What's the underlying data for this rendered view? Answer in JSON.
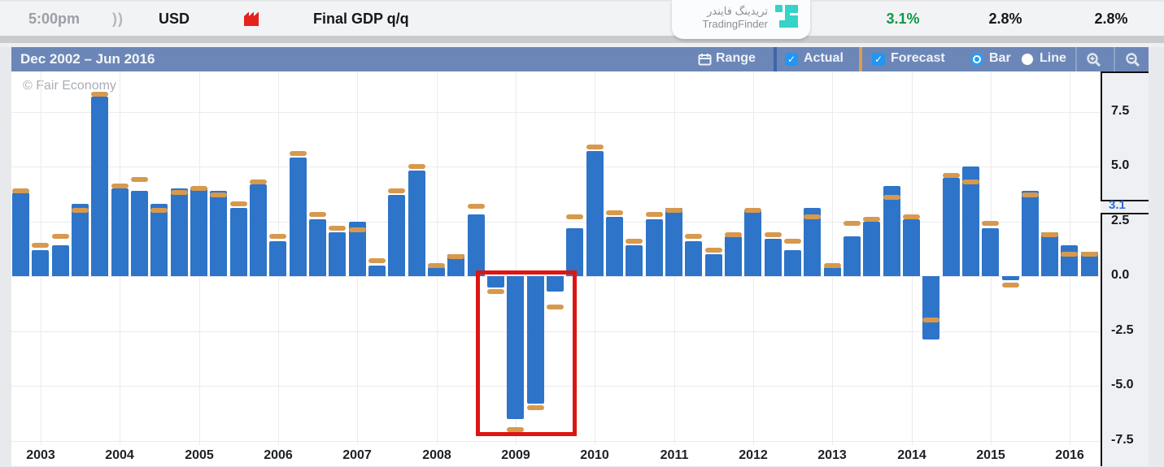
{
  "event_row": {
    "time": "5:00pm",
    "sound_icon": "))",
    "currency": "USD",
    "impact_icon": "red-factory-icon",
    "title": "Final GDP q/q",
    "actual": "3.1%",
    "forecast": "2.8%",
    "previous": "2.8%",
    "actual_color": "#0c9b43",
    "watermark": {
      "brand_fa": "تریدینگ فایندر",
      "brand_en": "TradingFinder",
      "logo_color": "#35d3c8"
    }
  },
  "chart_header": {
    "range_title": "Dec 2002 – Jun 2016",
    "controls": {
      "range_label": "Range",
      "actual": {
        "label": "Actual",
        "checked": true,
        "legend_color": "#3e64ab"
      },
      "forecast": {
        "label": "Forecast",
        "checked": true,
        "legend_color": "#dd9c55"
      },
      "bar": {
        "label": "Bar",
        "selected": true
      },
      "line": {
        "label": "Line",
        "selected": false
      },
      "zoom_in_icon": "magnifier-plus",
      "zoom_out_icon": "magnifier-minus"
    }
  },
  "chart_data": {
    "type": "bar",
    "title": "Final GDP q/q, Dec 2002 – Jun 2016, quarterly",
    "watermark": "© Fair Economy",
    "x_tick_labels": [
      "2003",
      "2004",
      "2005",
      "2006",
      "2007",
      "2008",
      "2009",
      "2010",
      "2011",
      "2012",
      "2013",
      "2014",
      "2015",
      "2016"
    ],
    "y_ticks": [
      7.5,
      5.0,
      2.5,
      0.0,
      -2.5,
      -5.0,
      -7.5
    ],
    "ylim": [
      -7.7,
      9.3
    ],
    "grid": true,
    "legend_position": "header-toolbar",
    "current_value_marker": "3.1",
    "bar_color": "#2e74c9",
    "forecast_color": "#d7994e",
    "series": [
      {
        "name": "Actual",
        "values": [
          3.8,
          1.2,
          1.4,
          3.3,
          8.2,
          4.0,
          3.9,
          3.3,
          4.0,
          4.0,
          3.9,
          3.1,
          4.2,
          1.6,
          5.4,
          2.6,
          2.0,
          2.5,
          0.5,
          3.7,
          4.8,
          0.4,
          1.0,
          2.8,
          -0.5,
          -6.5,
          -5.8,
          -0.7,
          2.2,
          5.7,
          2.7,
          1.4,
          2.6,
          3.1,
          1.6,
          1.0,
          1.8,
          3.0,
          1.7,
          1.2,
          3.1,
          0.4,
          1.8,
          2.5,
          4.1,
          2.6,
          -2.9,
          4.5,
          5.0,
          2.2,
          -0.2,
          3.9,
          2.0,
          1.4,
          1.1
        ]
      },
      {
        "name": "Forecast",
        "values": [
          3.9,
          1.4,
          1.8,
          3.0,
          8.3,
          4.1,
          4.4,
          3.0,
          3.8,
          4.0,
          3.7,
          3.3,
          4.3,
          1.8,
          5.6,
          2.8,
          2.2,
          2.1,
          0.7,
          3.9,
          5.0,
          0.5,
          0.9,
          3.2,
          -0.7,
          -7.0,
          -6.0,
          -1.4,
          2.7,
          5.9,
          2.9,
          1.6,
          2.8,
          3.0,
          1.8,
          1.2,
          1.9,
          3.0,
          1.9,
          1.6,
          2.7,
          0.5,
          2.4,
          2.6,
          3.6,
          2.7,
          -2.0,
          4.6,
          4.3,
          2.4,
          -0.4,
          3.7,
          1.9,
          1.0,
          1.0
        ]
      }
    ],
    "annotations": [
      {
        "type": "highlight-box",
        "color": "#dd1512",
        "note": "red rectangle around 2008-2009 recession bars",
        "bar_index_start": 24,
        "bar_index_end": 27
      }
    ]
  }
}
